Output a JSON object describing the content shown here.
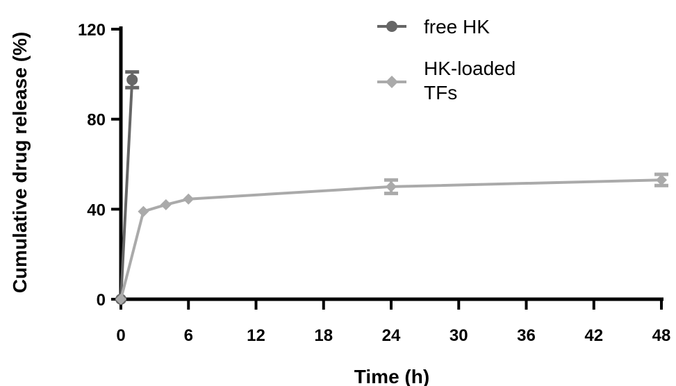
{
  "chart_data": {
    "type": "line",
    "xlabel": "Time (h)",
    "ylabel": "Cumulative drug release (%)",
    "xlim": [
      0,
      48
    ],
    "ylim": [
      0,
      120
    ],
    "xticks": [
      "0",
      "6",
      "12",
      "18",
      "24",
      "30",
      "36",
      "42",
      "48"
    ],
    "yticks": [
      "0",
      "40",
      "80",
      "120"
    ],
    "grid": false,
    "legend_position": "top-right",
    "series": [
      {
        "name": "free HK",
        "marker": "circle",
        "color": "#666666",
        "x": [
          0,
          1
        ],
        "y": [
          0,
          97.5
        ],
        "error": [
          0,
          3.5
        ]
      },
      {
        "name": "HK-loaded TFs",
        "name_lines": [
          "HK-loaded",
          "TFs"
        ],
        "marker": "diamond",
        "color": "#aaaaaa",
        "x": [
          0,
          2,
          4,
          6,
          24,
          48
        ],
        "y": [
          0,
          39,
          42,
          44.5,
          50,
          53
        ],
        "error": [
          0,
          0,
          0,
          0,
          3,
          2.5
        ]
      }
    ]
  }
}
